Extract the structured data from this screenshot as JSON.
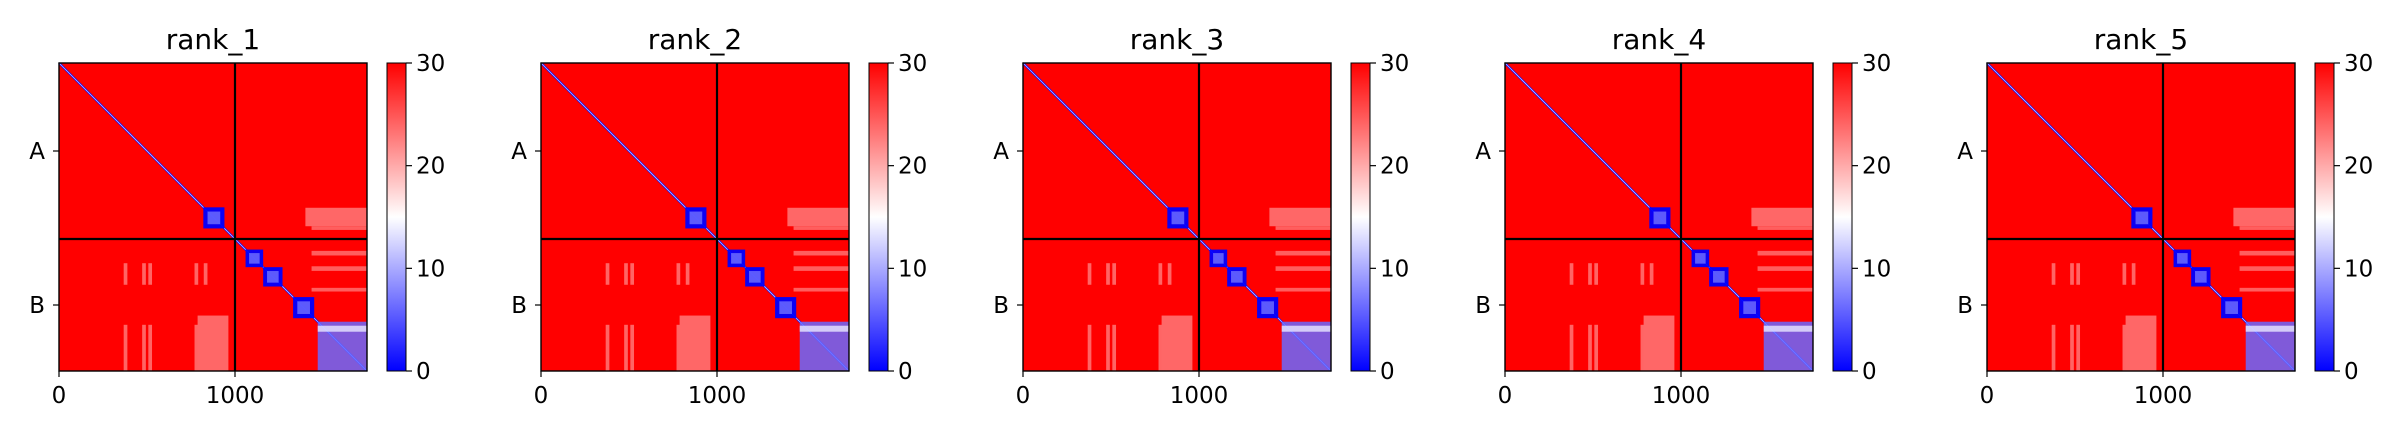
{
  "chart_data": [
    {
      "type": "heatmap",
      "title": "rank_1",
      "xlabel": "",
      "ylabel": "",
      "xticks": [
        0,
        1000
      ],
      "xtick_labels": [
        "0",
        "1000"
      ],
      "yticks": [
        500,
        1375
      ],
      "ytick_labels": [
        "A",
        "B"
      ],
      "xlim": [
        0,
        1750
      ],
      "ylim": [
        1750,
        0
      ],
      "chain_boundaries": [
        1000
      ],
      "colorbar": {
        "vmin": 0,
        "vmax": 30,
        "ticks": [
          0,
          10,
          20,
          30
        ],
        "tick_labels": [
          "0",
          "10",
          "20",
          "30"
        ],
        "colormap": "bwr"
      },
      "blocks": [
        [
          820,
          940
        ],
        [
          1060,
          1160
        ],
        [
          1160,
          1270
        ],
        [
          1330,
          1450
        ],
        [
          1470,
          1750
        ]
      ]
    },
    {
      "type": "heatmap",
      "title": "rank_2",
      "xlabel": "",
      "ylabel": "",
      "xticks": [
        0,
        1000
      ],
      "xtick_labels": [
        "0",
        "1000"
      ],
      "yticks": [
        500,
        1375
      ],
      "ytick_labels": [
        "A",
        "B"
      ],
      "xlim": [
        0,
        1750
      ],
      "ylim": [
        1750,
        0
      ],
      "chain_boundaries": [
        1000
      ],
      "colorbar": {
        "vmin": 0,
        "vmax": 30,
        "ticks": [
          0,
          10,
          20,
          30
        ],
        "tick_labels": [
          "0",
          "10",
          "20",
          "30"
        ],
        "colormap": "bwr"
      },
      "blocks": [
        [
          820,
          940
        ],
        [
          1060,
          1160
        ],
        [
          1160,
          1270
        ],
        [
          1330,
          1450
        ],
        [
          1470,
          1750
        ]
      ]
    },
    {
      "type": "heatmap",
      "title": "rank_3",
      "xlabel": "",
      "ylabel": "",
      "xticks": [
        0,
        1000
      ],
      "xtick_labels": [
        "0",
        "1000"
      ],
      "yticks": [
        500,
        1375
      ],
      "ytick_labels": [
        "A",
        "B"
      ],
      "xlim": [
        0,
        1750
      ],
      "ylim": [
        1750,
        0
      ],
      "chain_boundaries": [
        1000
      ],
      "colorbar": {
        "vmin": 0,
        "vmax": 30,
        "ticks": [
          0,
          10,
          20,
          30
        ],
        "tick_labels": [
          "0",
          "10",
          "20",
          "30"
        ],
        "colormap": "bwr"
      },
      "blocks": [
        [
          820,
          940
        ],
        [
          1060,
          1160
        ],
        [
          1160,
          1270
        ],
        [
          1330,
          1450
        ],
        [
          1470,
          1750
        ]
      ]
    },
    {
      "type": "heatmap",
      "title": "rank_4",
      "xlabel": "",
      "ylabel": "",
      "xticks": [
        0,
        1000
      ],
      "xtick_labels": [
        "0",
        "1000"
      ],
      "yticks": [
        500,
        1375
      ],
      "ytick_labels": [
        "A",
        "B"
      ],
      "xlim": [
        0,
        1750
      ],
      "ylim": [
        1750,
        0
      ],
      "chain_boundaries": [
        1000
      ],
      "colorbar": {
        "vmin": 0,
        "vmax": 30,
        "ticks": [
          0,
          10,
          20,
          30
        ],
        "tick_labels": [
          "0",
          "10",
          "20",
          "30"
        ],
        "colormap": "bwr"
      },
      "blocks": [
        [
          820,
          940
        ],
        [
          1060,
          1160
        ],
        [
          1160,
          1270
        ],
        [
          1330,
          1450
        ],
        [
          1470,
          1750
        ]
      ]
    },
    {
      "type": "heatmap",
      "title": "rank_5",
      "xlabel": "",
      "ylabel": "",
      "xticks": [
        0,
        1000
      ],
      "xtick_labels": [
        "0",
        "1000"
      ],
      "yticks": [
        500,
        1375
      ],
      "ytick_labels": [
        "A",
        "B"
      ],
      "xlim": [
        0,
        1750
      ],
      "ylim": [
        1750,
        0
      ],
      "chain_boundaries": [
        1000
      ],
      "colorbar": {
        "vmin": 0,
        "vmax": 30,
        "ticks": [
          0,
          10,
          20,
          30
        ],
        "tick_labels": [
          "0",
          "10",
          "20",
          "30"
        ],
        "colormap": "bwr"
      },
      "blocks": [
        [
          820,
          940
        ],
        [
          1060,
          1160
        ],
        [
          1160,
          1270
        ],
        [
          1330,
          1450
        ],
        [
          1470,
          1750
        ]
      ]
    }
  ],
  "colors": {
    "low": "#0000ff",
    "mid": "#ffffff",
    "high": "#ff0000"
  }
}
